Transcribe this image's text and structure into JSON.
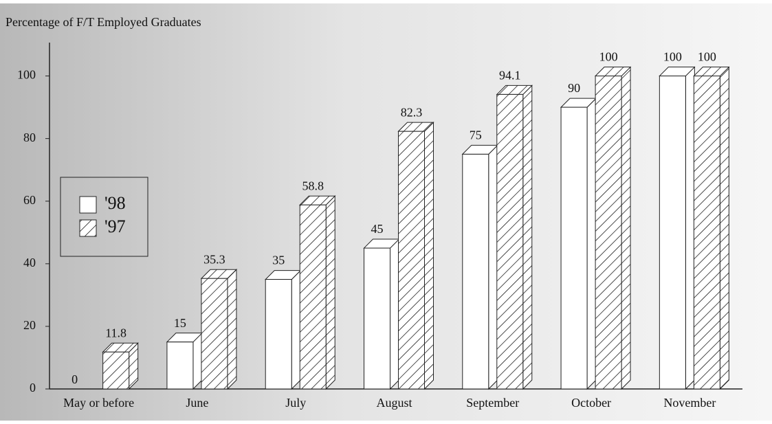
{
  "chart_data": {
    "type": "bar3d",
    "title": "Percentage of F/T Employed Graduates",
    "categories": [
      "May or before",
      "June",
      "July",
      "August",
      "September",
      "October",
      "November"
    ],
    "series": [
      {
        "name": "'98",
        "color": "#ffffff",
        "hatch": false,
        "values": [
          0,
          15,
          35,
          45,
          75,
          90,
          100
        ]
      },
      {
        "name": "'97",
        "color": "#ffffff",
        "hatch": true,
        "values": [
          11.8,
          35.3,
          58.8,
          82.3,
          94.1,
          100,
          100
        ]
      }
    ],
    "ylim": [
      0,
      110
    ],
    "yticks": [
      0,
      20,
      40,
      60,
      80,
      100
    ],
    "legend": "left"
  }
}
